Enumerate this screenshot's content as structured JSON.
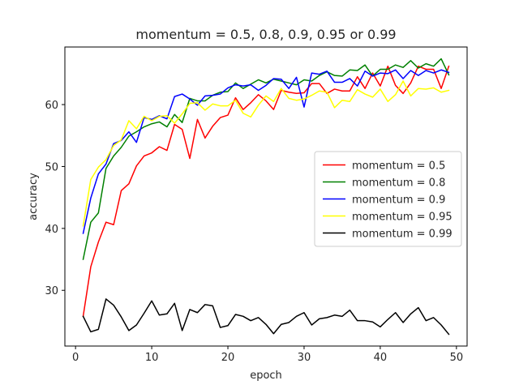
{
  "chart_data": {
    "type": "line",
    "title": "momentum = 0.5, 0.8, 0.9, 0.95 or 0.99",
    "xlabel": "epoch",
    "ylabel": "accuracy",
    "xlim": [
      -1.4,
      51.4
    ],
    "ylim": [
      21,
      69.3
    ],
    "xticks": [
      0,
      10,
      20,
      30,
      40,
      50
    ],
    "yticks": [
      30,
      40,
      50,
      60
    ],
    "grid": false,
    "legend_placement": "center-right",
    "x": [
      1,
      2,
      3,
      4,
      5,
      6,
      7,
      8,
      9,
      10,
      11,
      12,
      13,
      14,
      15,
      16,
      17,
      18,
      19,
      20,
      21,
      22,
      23,
      24,
      25,
      26,
      27,
      28,
      29,
      30,
      31,
      32,
      33,
      34,
      35,
      36,
      37,
      38,
      39,
      40,
      41,
      42,
      43,
      44,
      45,
      46,
      47,
      48,
      49
    ],
    "series": [
      {
        "name": "momentum = 0.5",
        "color": "#ff0000",
        "values": [
          25.8,
          33.8,
          37.8,
          41.0,
          40.6,
          46.1,
          47.2,
          50.1,
          51.7,
          52.2,
          53.2,
          52.6,
          56.8,
          56.0,
          51.3,
          57.6,
          54.6,
          56.5,
          57.9,
          58.3,
          61.1,
          59.2,
          60.3,
          61.6,
          60.6,
          59.2,
          62.3,
          62.0,
          61.8,
          61.9,
          63.4,
          63.4,
          61.8,
          62.5,
          62.2,
          62.2,
          64.5,
          62.6,
          65.1,
          63.0,
          66.2,
          63.1,
          61.8,
          63.5,
          66.2,
          65.7,
          65.7,
          62.6,
          66.2
        ]
      },
      {
        "name": "momentum = 0.8",
        "color": "#008000",
        "values": [
          35.0,
          41.0,
          42.5,
          49.7,
          51.7,
          53.1,
          54.9,
          55.6,
          56.4,
          56.9,
          57.2,
          56.4,
          58.4,
          57.1,
          61.0,
          60.6,
          60.6,
          61.5,
          62.0,
          62.1,
          63.5,
          62.6,
          63.3,
          64.0,
          63.5,
          64.1,
          63.8,
          63.5,
          63.2,
          64.0,
          63.8,
          64.7,
          65.3,
          64.7,
          64.6,
          65.6,
          65.5,
          66.4,
          64.6,
          65.7,
          65.7,
          66.4,
          66.0,
          67.1,
          65.9,
          66.6,
          66.2,
          67.4,
          64.8
        ]
      },
      {
        "name": "momentum = 0.9",
        "color": "#0000ff",
        "values": [
          39.2,
          44.9,
          48.8,
          50.4,
          53.7,
          54.2,
          55.6,
          53.9,
          57.9,
          57.6,
          58.2,
          57.7,
          61.3,
          61.7,
          60.9,
          59.9,
          61.4,
          61.5,
          61.7,
          62.7,
          63.2,
          63.0,
          63.2,
          62.3,
          63.1,
          64.2,
          64.1,
          62.6,
          64.4,
          59.6,
          65.1,
          64.9,
          65.4,
          63.6,
          63.6,
          64.2,
          63.0,
          65.4,
          64.6,
          65.1,
          65.0,
          65.6,
          64.2,
          65.5,
          64.7,
          65.5,
          65.1,
          65.6,
          65.2
        ]
      },
      {
        "name": "momentum = 0.95",
        "color": "#ffff00",
        "values": [
          40.4,
          47.9,
          49.9,
          51.1,
          53.4,
          54.3,
          57.4,
          56.1,
          58.1,
          57.4,
          58.1,
          58.2,
          57.0,
          58.5,
          60.2,
          60.3,
          59.1,
          60.1,
          59.8,
          59.8,
          60.7,
          58.6,
          58.0,
          59.9,
          61.4,
          60.5,
          62.6,
          61.0,
          60.7,
          60.9,
          61.5,
          62.2,
          62.0,
          59.5,
          60.7,
          60.5,
          62.4,
          61.7,
          61.2,
          62.5,
          60.5,
          61.6,
          63.8,
          61.4,
          62.6,
          62.5,
          62.7,
          62.0,
          62.3
        ]
      },
      {
        "name": "momentum = 0.99",
        "color": "#000000",
        "values": [
          25.8,
          23.3,
          23.7,
          28.6,
          27.6,
          25.7,
          23.5,
          24.4,
          26.3,
          28.3,
          26.0,
          26.2,
          27.9,
          23.5,
          26.9,
          26.4,
          27.7,
          27.5,
          24.0,
          24.3,
          26.1,
          25.8,
          25.1,
          25.6,
          24.5,
          23.0,
          24.5,
          24.8,
          25.8,
          26.4,
          24.4,
          25.4,
          25.6,
          26.0,
          25.8,
          26.8,
          25.1,
          25.1,
          24.9,
          24.1,
          25.3,
          26.4,
          24.8,
          26.2,
          27.2,
          25.1,
          25.6,
          24.4,
          22.9
        ]
      }
    ]
  }
}
